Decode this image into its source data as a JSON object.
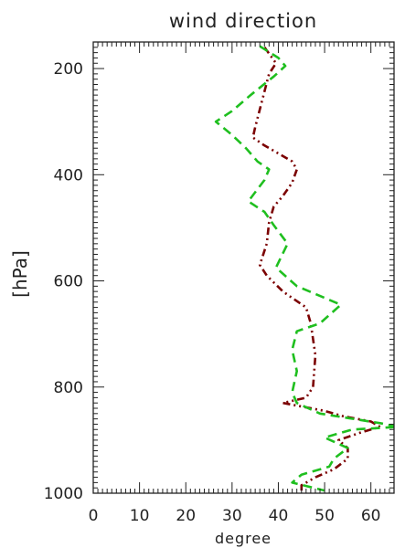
{
  "chart_data": {
    "type": "line",
    "title": "wind direction",
    "xlabel": "degree",
    "ylabel": "[hPa]",
    "xlim": [
      0,
      65
    ],
    "ylim": [
      1000,
      150
    ],
    "y_inverted": true,
    "xticks": [
      0,
      10,
      20,
      30,
      40,
      50,
      60
    ],
    "yticks": [
      200,
      400,
      600,
      800,
      1000
    ],
    "grid": false,
    "legend": "none",
    "series": [
      {
        "color": "#7b0000",
        "style": "dash-dot-dot",
        "points": [
          [
            37,
            160
          ],
          [
            39.5,
            190
          ],
          [
            38,
            210
          ],
          [
            35,
            310
          ],
          [
            34.5,
            330
          ],
          [
            37,
            345
          ],
          [
            39,
            355
          ],
          [
            43,
            375
          ],
          [
            44,
            390
          ],
          [
            43,
            415
          ],
          [
            41,
            440
          ],
          [
            39,
            460
          ],
          [
            38,
            490
          ],
          [
            37.5,
            530
          ],
          [
            36,
            570
          ],
          [
            37.5,
            590
          ],
          [
            41,
            620
          ],
          [
            46,
            650
          ],
          [
            47,
            680
          ],
          [
            48,
            740
          ],
          [
            47.5,
            800
          ],
          [
            46,
            820
          ],
          [
            41,
            830
          ],
          [
            50,
            845
          ],
          [
            54,
            855
          ],
          [
            60,
            865
          ],
          [
            62,
            875
          ],
          [
            58,
            885
          ],
          [
            53,
            900
          ],
          [
            55,
            915
          ],
          [
            55,
            935
          ],
          [
            52,
            955
          ],
          [
            48,
            970
          ],
          [
            45,
            985
          ],
          [
            45,
            995
          ]
        ]
      },
      {
        "color": "#1fbf1f",
        "style": "dashed",
        "points": [
          [
            36,
            158
          ],
          [
            40,
            180
          ],
          [
            41.5,
            195
          ],
          [
            39,
            215
          ],
          [
            34,
            250
          ],
          [
            30,
            280
          ],
          [
            26.5,
            300
          ],
          [
            30,
            325
          ],
          [
            33,
            350
          ],
          [
            35.5,
            375
          ],
          [
            38,
            390
          ],
          [
            37,
            410
          ],
          [
            33.5,
            450
          ],
          [
            37,
            470
          ],
          [
            39,
            495
          ],
          [
            42,
            530
          ],
          [
            39.5,
            575
          ],
          [
            44,
            610
          ],
          [
            53.5,
            645
          ],
          [
            49,
            680
          ],
          [
            44,
            695
          ],
          [
            43,
            730
          ],
          [
            44,
            770
          ],
          [
            43,
            810
          ],
          [
            44,
            830
          ],
          [
            49,
            850
          ],
          [
            62,
            868
          ],
          [
            66,
            875
          ],
          [
            56,
            880
          ],
          [
            50,
            895
          ],
          [
            55,
            915
          ],
          [
            52,
            935
          ],
          [
            51,
            950
          ],
          [
            45,
            965
          ],
          [
            43,
            980
          ],
          [
            50,
            995
          ]
        ]
      }
    ]
  }
}
